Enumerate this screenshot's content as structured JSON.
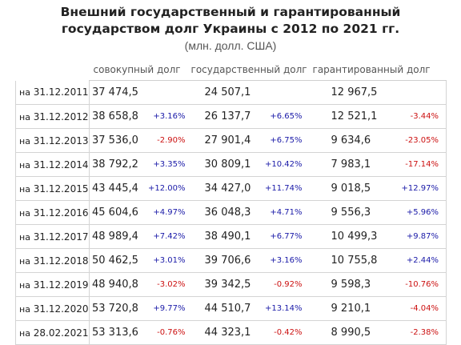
{
  "title_line1": "Внешний государственный и гарантированный",
  "title_line2": "государством долг Украины с 2012 по 2021 гг.",
  "subtitle": "(млн. долл. США)",
  "columns": [
    "совокупный долг",
    "государственный долг",
    "гарантированный долг"
  ],
  "colors": {
    "positive": "#1a1aa8",
    "negative": "#cc1111"
  },
  "rows": [
    {
      "prefix": "на",
      "date": "31.12.2011",
      "total": "37 474,5",
      "total_pct": "",
      "gov": "24 507,1",
      "gov_pct": "",
      "guar": "12 967,5",
      "guar_pct": ""
    },
    {
      "prefix": "на",
      "date": "31.12.2012",
      "total": "38 658,8",
      "total_pct": "+3.16%",
      "gov": "26 137,7",
      "gov_pct": "+6.65%",
      "guar": "12 521,1",
      "guar_pct": "-3.44%"
    },
    {
      "prefix": "на",
      "date": "31.12.2013",
      "total": "37 536,0",
      "total_pct": "-2.90%",
      "gov": "27 901,4",
      "gov_pct": "+6.75%",
      "guar": "9 634,6",
      "guar_pct": "-23.05%"
    },
    {
      "prefix": "на",
      "date": "31.12.2014",
      "total": "38 792,2",
      "total_pct": "+3.35%",
      "gov": "30 809,1",
      "gov_pct": "+10.42%",
      "guar": "7 983,1",
      "guar_pct": "-17.14%"
    },
    {
      "prefix": "на",
      "date": "31.12.2015",
      "total": "43 445,4",
      "total_pct": "+12.00%",
      "gov": "34 427,0",
      "gov_pct": "+11.74%",
      "guar": "9 018,5",
      "guar_pct": "+12.97%"
    },
    {
      "prefix": "на",
      "date": "31.12.2016",
      "total": "45 604,6",
      "total_pct": "+4.97%",
      "gov": "36 048,3",
      "gov_pct": "+4.71%",
      "guar": "9 556,3",
      "guar_pct": "+5.96%"
    },
    {
      "prefix": "на",
      "date": "31.12.2017",
      "total": "48 989,4",
      "total_pct": "+7.42%",
      "gov": "38 490,1",
      "gov_pct": "+6.77%",
      "guar": "10 499,3",
      "guar_pct": "+9.87%"
    },
    {
      "prefix": "на",
      "date": "31.12.2018",
      "total": "50 462,5",
      "total_pct": "+3.01%",
      "gov": "39 706,6",
      "gov_pct": "+3.16%",
      "guar": "10 755,8",
      "guar_pct": "+2.44%"
    },
    {
      "prefix": "на",
      "date": "31.12.2019",
      "total": "48 940,8",
      "total_pct": "-3.02%",
      "gov": "39 342,5",
      "gov_pct": "-0.92%",
      "guar": "9 598,3",
      "guar_pct": "-10.76%"
    },
    {
      "prefix": "на",
      "date": "31.12.2020",
      "total": "53 720,8",
      "total_pct": "+9.77%",
      "gov": "44 510,7",
      "gov_pct": "+13.14%",
      "guar": "9 210,1",
      "guar_pct": "-4.04%"
    },
    {
      "prefix": "на",
      "date": "28.02.2021",
      "total": "53 313,6",
      "total_pct": "-0.76%",
      "gov": "44 323,1",
      "gov_pct": "-0.42%",
      "guar": "8 990,5",
      "guar_pct": "-2.38%"
    }
  ]
}
